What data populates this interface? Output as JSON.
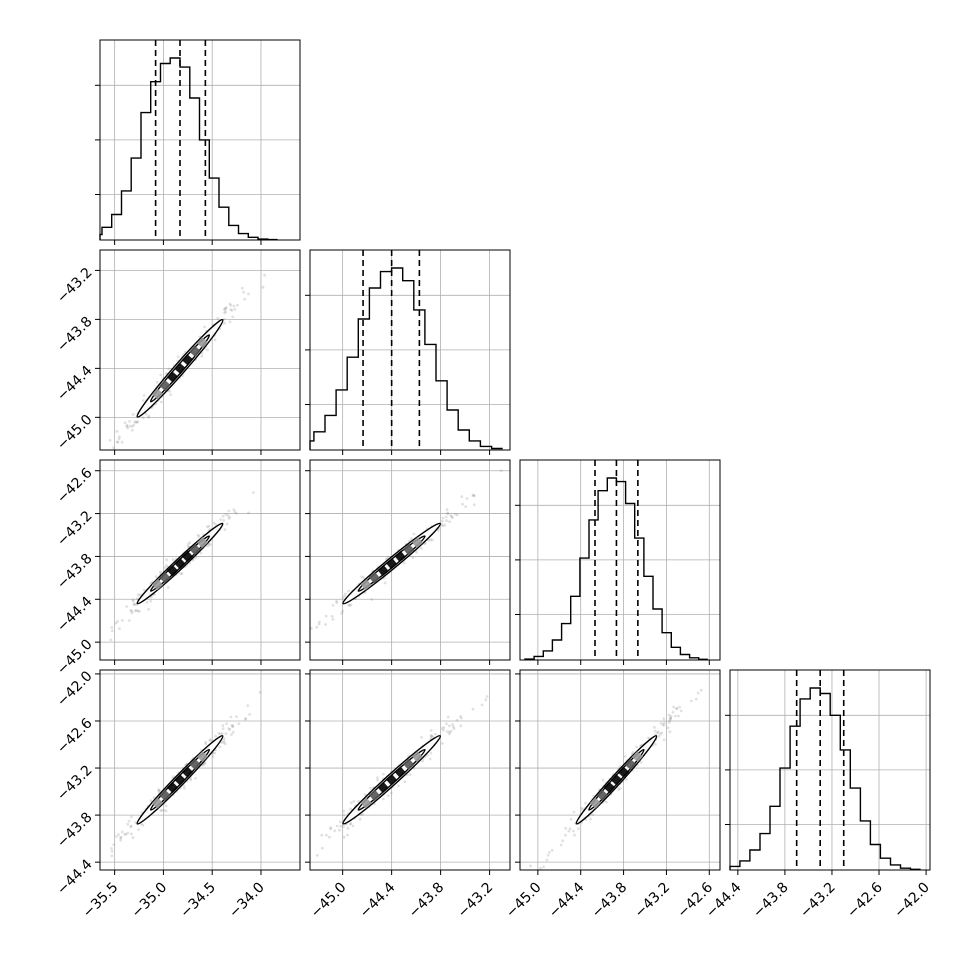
{
  "chart_data": {
    "type": "corner",
    "grid": true,
    "colors": {
      "line": "#000000",
      "grid": "#b0b0b0",
      "scatter": "#888888",
      "background": "#ffffff"
    },
    "parameters": [
      {
        "ticks": [
          -35.5,
          -35.0,
          -34.5,
          -34.0
        ],
        "range": [
          -35.65,
          -33.6
        ],
        "q": [
          -35.08,
          -34.83,
          -34.57
        ],
        "mu": -34.83,
        "sd": 0.25
      },
      {
        "ticks": [
          -45.0,
          -44.4,
          -43.8,
          -43.2
        ],
        "range": [
          -45.4,
          -42.95
        ],
        "q": [
          -44.75,
          -44.4,
          -44.06
        ],
        "mu": -44.4,
        "sd": 0.34
      },
      {
        "ticks": [
          -45.0,
          -44.4,
          -43.8,
          -43.2,
          -42.6
        ],
        "range": [
          -45.25,
          -42.45
        ],
        "q": [
          -44.2,
          -43.9,
          -43.6
        ],
        "mu": -43.9,
        "sd": 0.32
      },
      {
        "ticks": [
          -44.4,
          -43.8,
          -43.2,
          -42.6,
          -42.0
        ],
        "range": [
          -44.5,
          -41.95
        ],
        "q": [
          -43.65,
          -43.35,
          -43.05
        ],
        "mu": -43.35,
        "sd": 0.32
      }
    ],
    "marginal_heights": [
      [
        0.005,
        0.03,
        0.07,
        0.14,
        0.27,
        0.45,
        0.7,
        0.87,
        0.97,
        1.0,
        0.95,
        0.78,
        0.55,
        0.34,
        0.18,
        0.08,
        0.035,
        0.015,
        0.005,
        0.002
      ],
      [
        0.01,
        0.025,
        0.05,
        0.1,
        0.19,
        0.33,
        0.51,
        0.72,
        0.89,
        0.98,
        1.0,
        0.93,
        0.77,
        0.58,
        0.38,
        0.22,
        0.11,
        0.05,
        0.02,
        0.008
      ],
      [
        0.005,
        0.02,
        0.05,
        0.11,
        0.2,
        0.35,
        0.56,
        0.77,
        0.93,
        1.0,
        0.98,
        0.86,
        0.67,
        0.46,
        0.28,
        0.15,
        0.07,
        0.03,
        0.012,
        0.004
      ],
      [
        0.005,
        0.02,
        0.05,
        0.11,
        0.2,
        0.35,
        0.56,
        0.79,
        0.94,
        1.0,
        0.97,
        0.85,
        0.66,
        0.45,
        0.27,
        0.14,
        0.065,
        0.028,
        0.01,
        0.004
      ]
    ],
    "correlation": 0.985,
    "quantiles": [
      0.16,
      0.5,
      0.84
    ]
  }
}
